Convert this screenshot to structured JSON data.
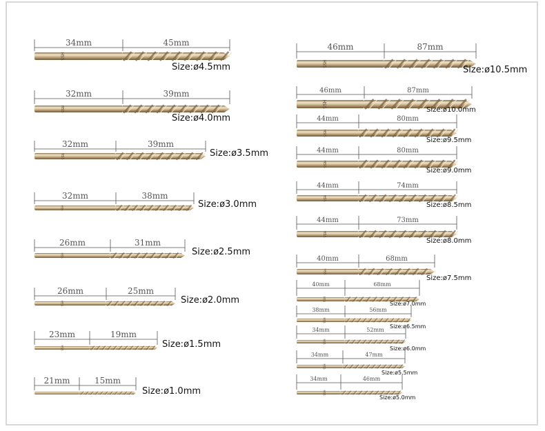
{
  "colors": {
    "frame": "#d8d8d8",
    "dimension_line": "#555555",
    "dimension_text": "#555555",
    "size_text": "#111111",
    "bit_light": "#efe2c6",
    "bit_mid": "#c9ad82",
    "bit_dark": "#7e6544"
  },
  "icon": "drill-bit",
  "engraving": "HSS",
  "left_column": [
    {
      "shank": "34mm",
      "flute": "45mm",
      "size": "Size:ø4.5mm"
    },
    {
      "shank": "32mm",
      "flute": "39mm",
      "size": "Size:ø4.0mm"
    },
    {
      "shank": "32mm",
      "flute": "39mm",
      "size": "Size:ø3.5mm"
    },
    {
      "shank": "32mm",
      "flute": "38mm",
      "size": "Size:ø3.0mm"
    },
    {
      "shank": "26mm",
      "flute": "31mm",
      "size": "Size:ø2.5mm"
    },
    {
      "shank": "26mm",
      "flute": "25mm",
      "size": "Size:ø2.0mm"
    },
    {
      "shank": "23mm",
      "flute": "19mm",
      "size": "Size:ø1.5mm"
    },
    {
      "shank": "21mm",
      "flute": "15mm",
      "size": "Size:ø1.0mm"
    }
  ],
  "right_column": [
    {
      "shank": "46mm",
      "flute": "87mm",
      "size": "Size:ø10.5mm"
    },
    {
      "shank": "46mm",
      "flute": "87mm",
      "size": "Size:ø10.0mm"
    },
    {
      "shank": "44mm",
      "flute": "80mm",
      "size": "Size:ø9.5mm"
    },
    {
      "shank": "44mm",
      "flute": "80mm",
      "size": "Size:ø9.0mm"
    },
    {
      "shank": "44mm",
      "flute": "74mm",
      "size": "Size:ø8.5mm"
    },
    {
      "shank": "44mm",
      "flute": "73mm",
      "size": "Size:ø8.0mm"
    },
    {
      "shank": "40mm",
      "flute": "68mm",
      "size": "Size:ø7.5mm"
    },
    {
      "shank": "40mm",
      "flute": "68mm",
      "size": "Size:ø7.0mm"
    },
    {
      "shank": "38mm",
      "flute": "56mm",
      "size": "Size:ø6.5mm"
    },
    {
      "shank": "34mm",
      "flute": "52mm",
      "size": "Size:ø6.0mm"
    },
    {
      "shank": "34mm",
      "flute": "47mm",
      "size": "Size:ø5.5mm"
    },
    {
      "shank": "34mm",
      "flute": "46mm",
      "size": "Size:ø5.0mm"
    }
  ]
}
